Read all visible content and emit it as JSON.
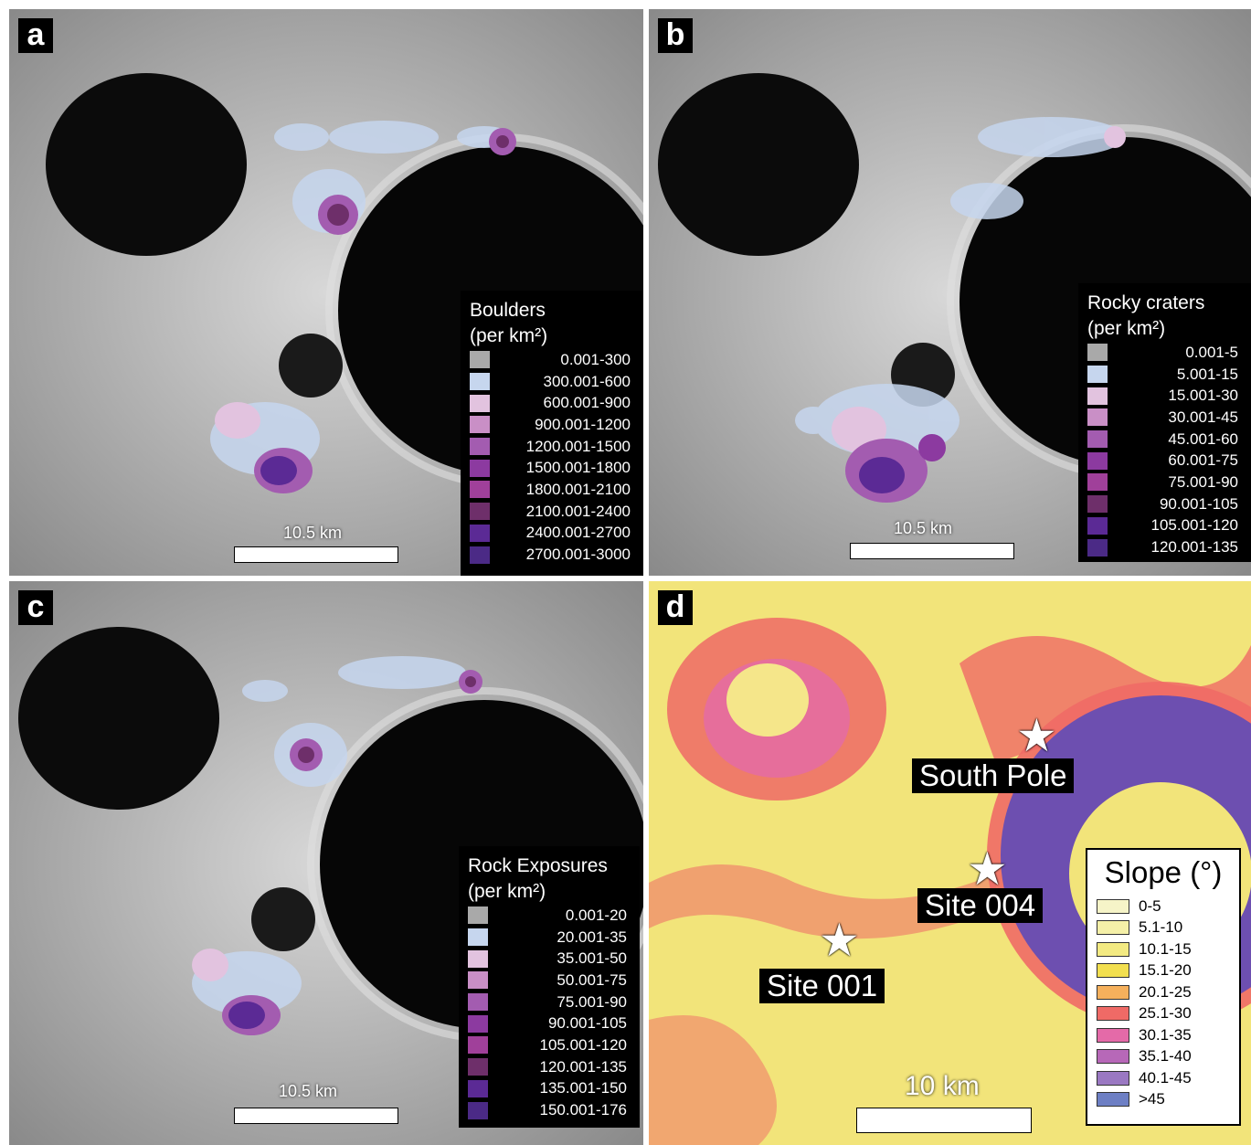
{
  "panels": [
    {
      "label": "a",
      "legend_title_1": "Boulders",
      "legend_title_2": "(per km²)",
      "scale": "10.5 km",
      "legend": [
        {
          "range": "0.001-300",
          "color": "#a9a9a9"
        },
        {
          "range": "300.001-600",
          "color": "#c6d6ee"
        },
        {
          "range": "600.001-900",
          "color": "#e2c3df"
        },
        {
          "range": "900.001-1200",
          "color": "#c98fc6"
        },
        {
          "range": "1200.001-1500",
          "color": "#a35cb0"
        },
        {
          "range": "1500.001-1800",
          "color": "#8c3aa0"
        },
        {
          "range": "1800.001-2100",
          "color": "#a0409a"
        },
        {
          "range": "2100.001-2400",
          "color": "#6e2f6a"
        },
        {
          "range": "2400.001-2700",
          "color": "#5b2a95"
        },
        {
          "range": "2700.001-3000",
          "color": "#4b2a86"
        }
      ]
    },
    {
      "label": "b",
      "legend_title_1": "Rocky craters",
      "legend_title_2": "(per km²)",
      "scale": "10.5 km",
      "legend": [
        {
          "range": "0.001-5",
          "color": "#a9a9a9"
        },
        {
          "range": "5.001-15",
          "color": "#c6d6ee"
        },
        {
          "range": "15.001-30",
          "color": "#e2c3df"
        },
        {
          "range": "30.001-45",
          "color": "#c98fc6"
        },
        {
          "range": "45.001-60",
          "color": "#a35cb0"
        },
        {
          "range": "60.001-75",
          "color": "#8c3aa0"
        },
        {
          "range": "75.001-90",
          "color": "#a0409a"
        },
        {
          "range": "90.001-105",
          "color": "#6e2f6a"
        },
        {
          "range": "105.001-120",
          "color": "#5b2a95"
        },
        {
          "range": "120.001-135",
          "color": "#4b2a86"
        }
      ]
    },
    {
      "label": "c",
      "legend_title_1": "Rock Exposures",
      "legend_title_2": "(per km²)",
      "scale": "10.5 km",
      "legend": [
        {
          "range": "0.001-20",
          "color": "#a9a9a9"
        },
        {
          "range": "20.001-35",
          "color": "#c6d6ee"
        },
        {
          "range": "35.001-50",
          "color": "#e2c3df"
        },
        {
          "range": "50.001-75",
          "color": "#c98fc6"
        },
        {
          "range": "75.001-90",
          "color": "#a35cb0"
        },
        {
          "range": "90.001-105",
          "color": "#8c3aa0"
        },
        {
          "range": "105.001-120",
          "color": "#a0409a"
        },
        {
          "range": "120.001-135",
          "color": "#6e2f6a"
        },
        {
          "range": "135.001-150",
          "color": "#5b2a95"
        },
        {
          "range": "150.001-176",
          "color": "#4b2a86"
        }
      ]
    }
  ],
  "slope_panel": {
    "label": "d",
    "legend_title": "Slope (°)",
    "scale": "10 km",
    "sites": [
      "South Pole",
      "Site 004",
      "Site 001"
    ],
    "legend": [
      {
        "range": "0-5",
        "color": "#f6f4c8"
      },
      {
        "range": "5.1-10",
        "color": "#f5f0a8"
      },
      {
        "range": "10.1-15",
        "color": "#f3ea82"
      },
      {
        "range": "15.1-20",
        "color": "#f2df4f"
      },
      {
        "range": "20.1-25",
        "color": "#f5b05c"
      },
      {
        "range": "25.1-30",
        "color": "#ef6a66"
      },
      {
        "range": "30.1-35",
        "color": "#e46aa8"
      },
      {
        "range": "35.1-40",
        "color": "#b768b8"
      },
      {
        "range": "40.1-45",
        "color": "#9a78c2"
      },
      {
        "range": ">45",
        "color": "#6d7fc4"
      }
    ]
  }
}
